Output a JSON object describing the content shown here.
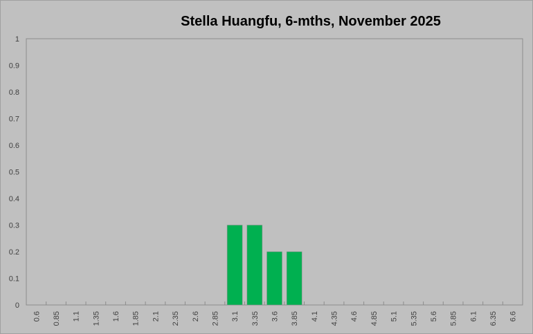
{
  "chart_data": {
    "type": "bar",
    "title": "Stella Huangfu, 6-mths, November 2025",
    "categories": [
      "0.6",
      "0.85",
      "1.1",
      "1.35",
      "1.6",
      "1.85",
      "2.1",
      "2.35",
      "2.6",
      "2.85",
      "3.1",
      "3.35",
      "3.6",
      "3.85",
      "4.1",
      "4.35",
      "4.6",
      "4.85",
      "5.1",
      "5.35",
      "5.6",
      "5.85",
      "6.1",
      "6.35",
      "6.6"
    ],
    "values": [
      0,
      0,
      0,
      0,
      0,
      0,
      0,
      0,
      0,
      0,
      0.3,
      0.3,
      0.2,
      0.2,
      0,
      0,
      0,
      0,
      0,
      0,
      0,
      0,
      0,
      0,
      0
    ],
    "ylim": [
      0,
      1
    ],
    "yticks": [
      "0",
      "0.1",
      "0.2",
      "0.3",
      "0.4",
      "0.5",
      "0.6",
      "0.7",
      "0.8",
      "0.9",
      "1"
    ],
    "grid": false,
    "legend": "none",
    "bar_color": "#00b050",
    "background_color": "#c0c0c0"
  }
}
